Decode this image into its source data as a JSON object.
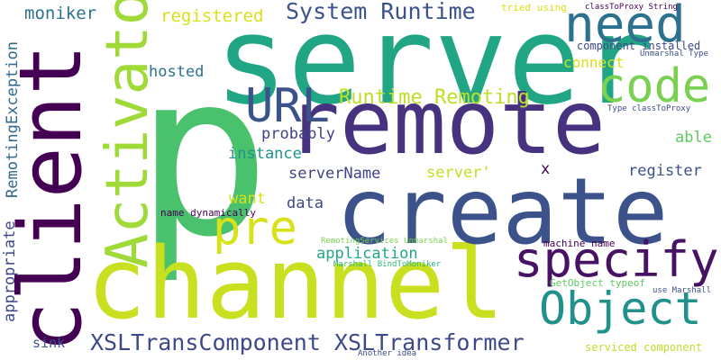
{
  "colors": {
    "background": "#ffffff",
    "dark_purple": "#440154",
    "indigo": "#3b528b",
    "teal": "#21918c",
    "green": "#5ec962",
    "yellow": "#d8e219"
  },
  "words": [
    {
      "id": "p",
      "text": "p",
      "color": "#4ac16d"
    },
    {
      "id": "server",
      "text": "server",
      "color": "#21a685"
    },
    {
      "id": "channel",
      "text": "channel",
      "color": "#c8e020"
    },
    {
      "id": "client",
      "text": "client",
      "color": "#440154"
    },
    {
      "id": "create",
      "text": "create",
      "color": "#3b528b"
    },
    {
      "id": "remote",
      "text": "remote",
      "color": "#46327e"
    },
    {
      "id": "activator",
      "text": "Activator",
      "color": "#a0da39"
    },
    {
      "id": "specify",
      "text": "specify",
      "color": "#471164"
    },
    {
      "id": "object",
      "text": "Object",
      "color": "#21918c"
    },
    {
      "id": "need",
      "text": "need",
      "color": "#2c728e"
    },
    {
      "id": "code",
      "text": "code",
      "color": "#7ad151"
    },
    {
      "id": "url",
      "text": "URL",
      "color": "#3b528b"
    },
    {
      "id": "pre",
      "text": "pre",
      "color": "#d8e219"
    },
    {
      "id": "xsl",
      "text": "XSLTransComponent XSLTransformer",
      "color": "#3e4989"
    },
    {
      "id": "system-runtime",
      "text": "System Runtime",
      "color": "#3b528b"
    },
    {
      "id": "runtime-remoting",
      "text": "Runtime Remoting",
      "color": "#bddf26"
    },
    {
      "id": "registered",
      "text": "registered",
      "color": "#d8e219"
    },
    {
      "id": "moniker",
      "text": "moniker",
      "color": "#2c728e"
    },
    {
      "id": "remoting-exception",
      "text": "RemotingException",
      "color": "#31688e"
    },
    {
      "id": "appropriate",
      "text": "appropriate",
      "color": "#3e4989"
    },
    {
      "id": "hosted",
      "text": "hosted",
      "color": "#2c728e"
    },
    {
      "id": "probably",
      "text": "probably",
      "color": "#424086"
    },
    {
      "id": "instance",
      "text": "instance",
      "color": "#21918c"
    },
    {
      "id": "serverName",
      "text": "serverName",
      "color": "#414487"
    },
    {
      "id": "want",
      "text": "want",
      "color": "#d8e219"
    },
    {
      "id": "data",
      "text": "data",
      "color": "#3e4989"
    },
    {
      "id": "application",
      "text": "application",
      "color": "#22a884"
    },
    {
      "id": "server-quote",
      "text": "server'",
      "color": "#c2df23"
    },
    {
      "id": "x",
      "text": "x",
      "color": "#440154"
    },
    {
      "id": "register",
      "text": "register",
      "color": "#3b528b"
    },
    {
      "id": "able",
      "text": "able",
      "color": "#5ec962"
    },
    {
      "id": "connect",
      "text": "connect",
      "color": "#d8e219"
    },
    {
      "id": "hosted-component",
      "text": "component installed",
      "color": "#3e4989"
    },
    {
      "id": "tried-using",
      "text": "tried using",
      "color": "#d8e219"
    },
    {
      "id": "classToProxy-string",
      "text": "classToProxy String",
      "color": "#440154"
    },
    {
      "id": "unmarshal-type",
      "text": "Unmarshal Type",
      "color": "#3b528b"
    },
    {
      "id": "type-classToProxy",
      "text": "Type classToProxy",
      "color": "#3e4989"
    },
    {
      "id": "name-dynamically",
      "text": "name dynamically",
      "color": "#440154"
    },
    {
      "id": "remotingservices-unmarshal",
      "text": "RemotingServices Unmarshal",
      "color": "#7ad151"
    },
    {
      "id": "marshall-bindtomoniker",
      "text": "Marshall BindToMoniker",
      "color": "#2fb47c"
    },
    {
      "id": "machine-name",
      "text": "machine name",
      "color": "#440154"
    },
    {
      "id": "getobject-typeof",
      "text": "GetObject typeof",
      "color": "#5ec962"
    },
    {
      "id": "use-marshall",
      "text": "use Marshall",
      "color": "#3b528b"
    },
    {
      "id": "sink",
      "text": "sink",
      "color": "#3b528b"
    },
    {
      "id": "serviced-component",
      "text": "serviced component",
      "color": "#bddf26"
    },
    {
      "id": "another-idea",
      "text": "Another idea",
      "color": "#3e4989"
    }
  ]
}
